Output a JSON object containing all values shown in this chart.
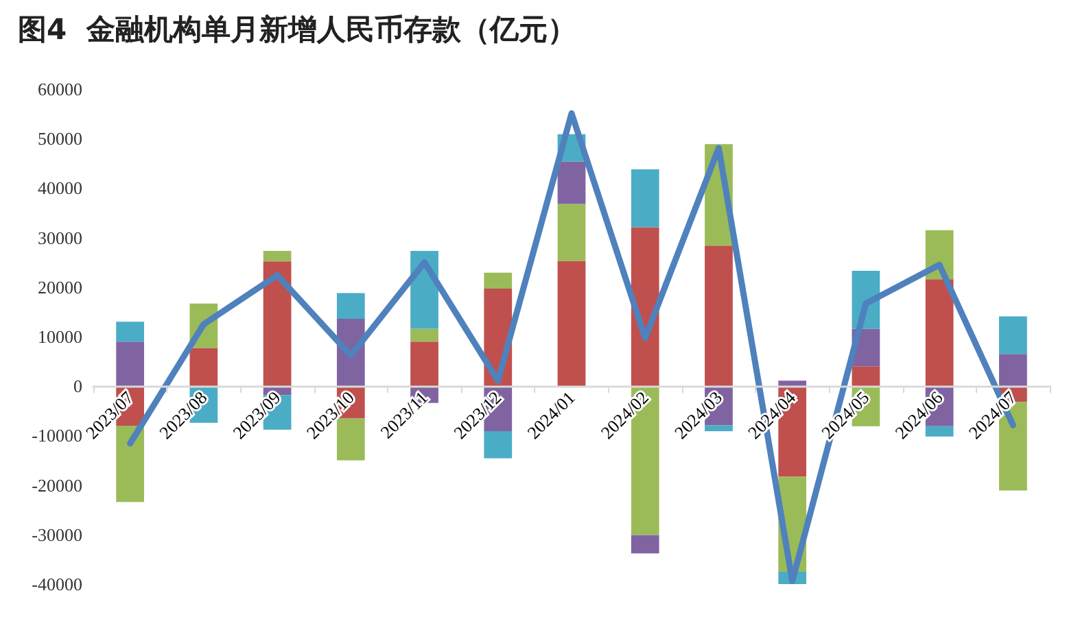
{
  "chart_data": {
    "type": "bar",
    "title": "图4  金融机构单月新增人民币存款（亿元）",
    "stacked": true,
    "categories": [
      "2023/07",
      "2023/08",
      "2023/09",
      "2023/10",
      "2023/11",
      "2023/12",
      "2024/01",
      "2024/02",
      "2024/03",
      "2024/04",
      "2024/05",
      "2024/06",
      "2024/07"
    ],
    "ylim": [
      -40000,
      60000
    ],
    "yticks": [
      -40000,
      -30000,
      -20000,
      -10000,
      0,
      10000,
      20000,
      30000,
      40000,
      50000,
      60000
    ],
    "series": [
      {
        "color": "#c0504d",
        "values": [
          -8000,
          7700,
          25200,
          -6500,
          9000,
          19700,
          25300,
          32100,
          28400,
          -18300,
          4000,
          21600,
          -3200
        ]
      },
      {
        "color": "#9bbb59",
        "values": [
          -15400,
          9000,
          2100,
          -8500,
          2600,
          3200,
          11500,
          -30100,
          20500,
          -19200,
          -8100,
          9900,
          -17900
        ]
      },
      {
        "color": "#8064a2",
        "values": [
          9000,
          null,
          -1800,
          13600,
          -3400,
          -9100,
          8600,
          -3700,
          -7900,
          1100,
          7600,
          -8100,
          6500
        ]
      },
      {
        "color": "#4bacc6",
        "values": [
          4000,
          -7400,
          -7000,
          5200,
          15700,
          -5500,
          5500,
          11700,
          -1200,
          -2800,
          11700,
          -2100,
          7600
        ]
      },
      {
        "type": "line",
        "color": "#4f81bd",
        "marker": "none",
        "line_style": "solid",
        "values": [
          -11600,
          12500,
          22400,
          6200,
          25000,
          1100,
          55100,
          9700,
          48100,
          -39400,
          16700,
          24500,
          -7900
        ]
      }
    ]
  }
}
